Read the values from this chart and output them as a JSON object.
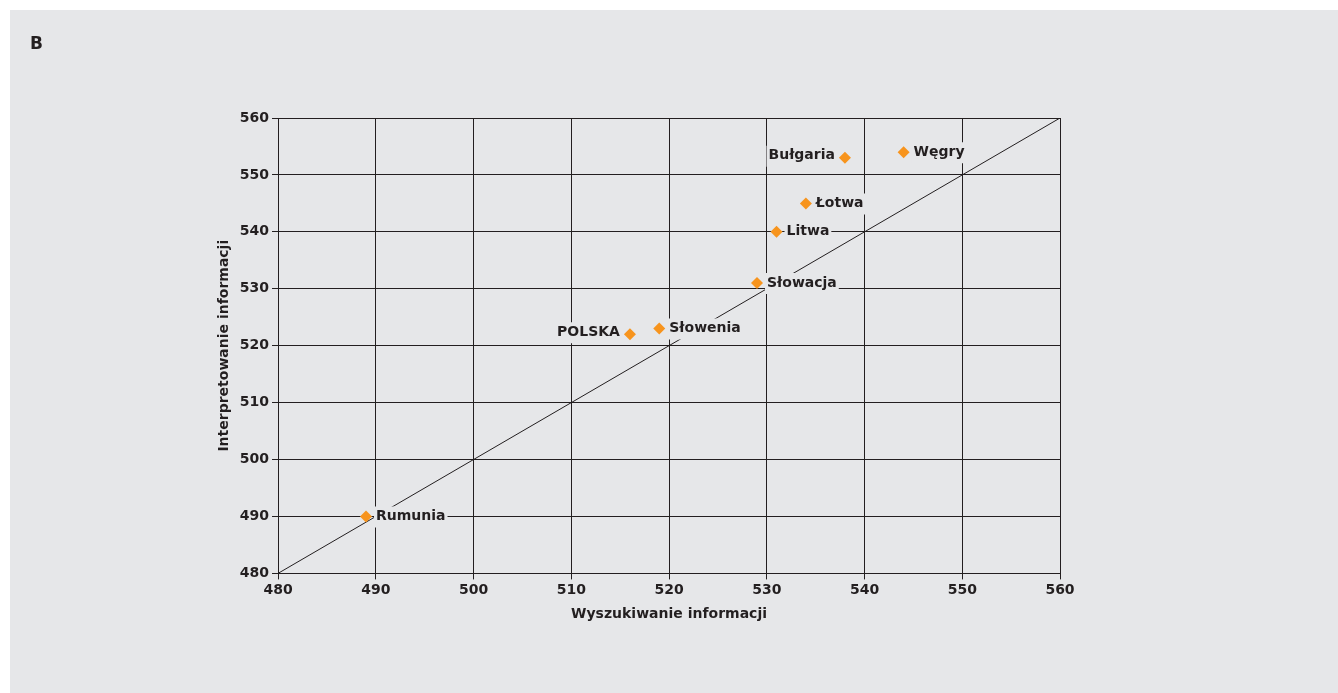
{
  "chart_data": {
    "type": "scatter",
    "xlabel": "Wyszukiwanie informacji",
    "ylabel": "Interpretowanie informacji",
    "annotations": [
      "B"
    ],
    "xlim": [
      480,
      560
    ],
    "xticks": [
      480,
      490,
      500,
      510,
      520,
      530,
      540,
      550,
      560
    ],
    "ylim": [
      480,
      560
    ],
    "yticks": [
      480,
      490,
      500,
      510,
      520,
      530,
      540,
      550,
      560
    ],
    "grid": true,
    "legend": false,
    "marker": "diamond",
    "series": [
      {
        "name": "Rumunia",
        "color": "#f7941d",
        "x": [
          489
        ],
        "values": [
          490
        ]
      },
      {
        "name": "POLSKA",
        "color": "#f7941d",
        "x": [
          516
        ],
        "values": [
          522
        ]
      },
      {
        "name": "Słowenia",
        "color": "#f7941d",
        "x": [
          519
        ],
        "values": [
          523
        ]
      },
      {
        "name": "Słowacja",
        "color": "#f7941d",
        "x": [
          529
        ],
        "values": [
          531
        ]
      },
      {
        "name": "Litwa",
        "color": "#f7941d",
        "x": [
          531
        ],
        "values": [
          540
        ]
      },
      {
        "name": "Łotwa",
        "color": "#f7941d",
        "x": [
          534
        ],
        "values": [
          545
        ]
      },
      {
        "name": "Bułgaria",
        "color": "#f7941d",
        "x": [
          538
        ],
        "values": [
          553
        ]
      },
      {
        "name": "Węgry",
        "color": "#f7941d",
        "x": [
          544
        ],
        "values": [
          554
        ]
      },
      {
        "type": "line",
        "color": "#231f20",
        "x": [
          480,
          560
        ],
        "values": [
          480,
          560
        ],
        "marker": "none"
      }
    ]
  }
}
